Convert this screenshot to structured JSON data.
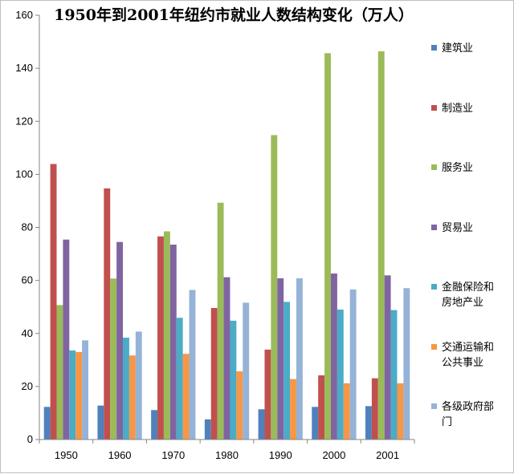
{
  "chart_data": {
    "type": "bar",
    "title": "1950年到2001年纽约市就业人数结构变化（万人）",
    "xlabel": "",
    "ylabel": "",
    "categories": [
      "1950",
      "1960",
      "1970",
      "1980",
      "1990",
      "2000",
      "2001"
    ],
    "ylim": [
      0,
      160
    ],
    "yticks": [
      0,
      20,
      40,
      60,
      80,
      100,
      120,
      140,
      160
    ],
    "grid": false,
    "legend_position": "right",
    "series": [
      {
        "name": "建筑业",
        "legend_lines": [
          "建筑业"
        ],
        "color": "#4f81bd",
        "values": [
          12.3,
          12.8,
          11.1,
          7.6,
          11.4,
          12.3,
          12.6
        ]
      },
      {
        "name": "制造业",
        "legend_lines": [
          "制造业"
        ],
        "color": "#c0504d",
        "values": [
          103.9,
          94.7,
          76.6,
          49.6,
          33.9,
          24.2,
          23.1
        ]
      },
      {
        "name": "服务业",
        "legend_lines": [
          "服务业"
        ],
        "color": "#9bbb59",
        "values": [
          50.7,
          60.7,
          78.5,
          89.3,
          114.8,
          145.7,
          146.4
        ]
      },
      {
        "name": "贸易业",
        "legend_lines": [
          "贸易业"
        ],
        "color": "#8064a2",
        "values": [
          75.4,
          74.5,
          73.5,
          61.2,
          60.8,
          62.6,
          61.9
        ]
      },
      {
        "name": "金融保险和房地产业",
        "legend_lines": [
          "金融保险和",
          "房地产业"
        ],
        "color": "#4bacc6",
        "values": [
          33.6,
          38.4,
          45.9,
          44.8,
          51.9,
          49.0,
          48.8
        ]
      },
      {
        "name": "交通运输和公共事业",
        "legend_lines": [
          "交通运输和",
          "公共事业"
        ],
        "color": "#f79646",
        "values": [
          33.0,
          31.7,
          32.3,
          25.7,
          22.8,
          21.2,
          21.2
        ]
      },
      {
        "name": "各级政府部门",
        "legend_lines": [
          "各级政府部",
          "门"
        ],
        "color": "#95b3d7",
        "values": [
          37.4,
          40.7,
          56.4,
          51.6,
          60.8,
          56.6,
          57.1
        ]
      }
    ]
  }
}
